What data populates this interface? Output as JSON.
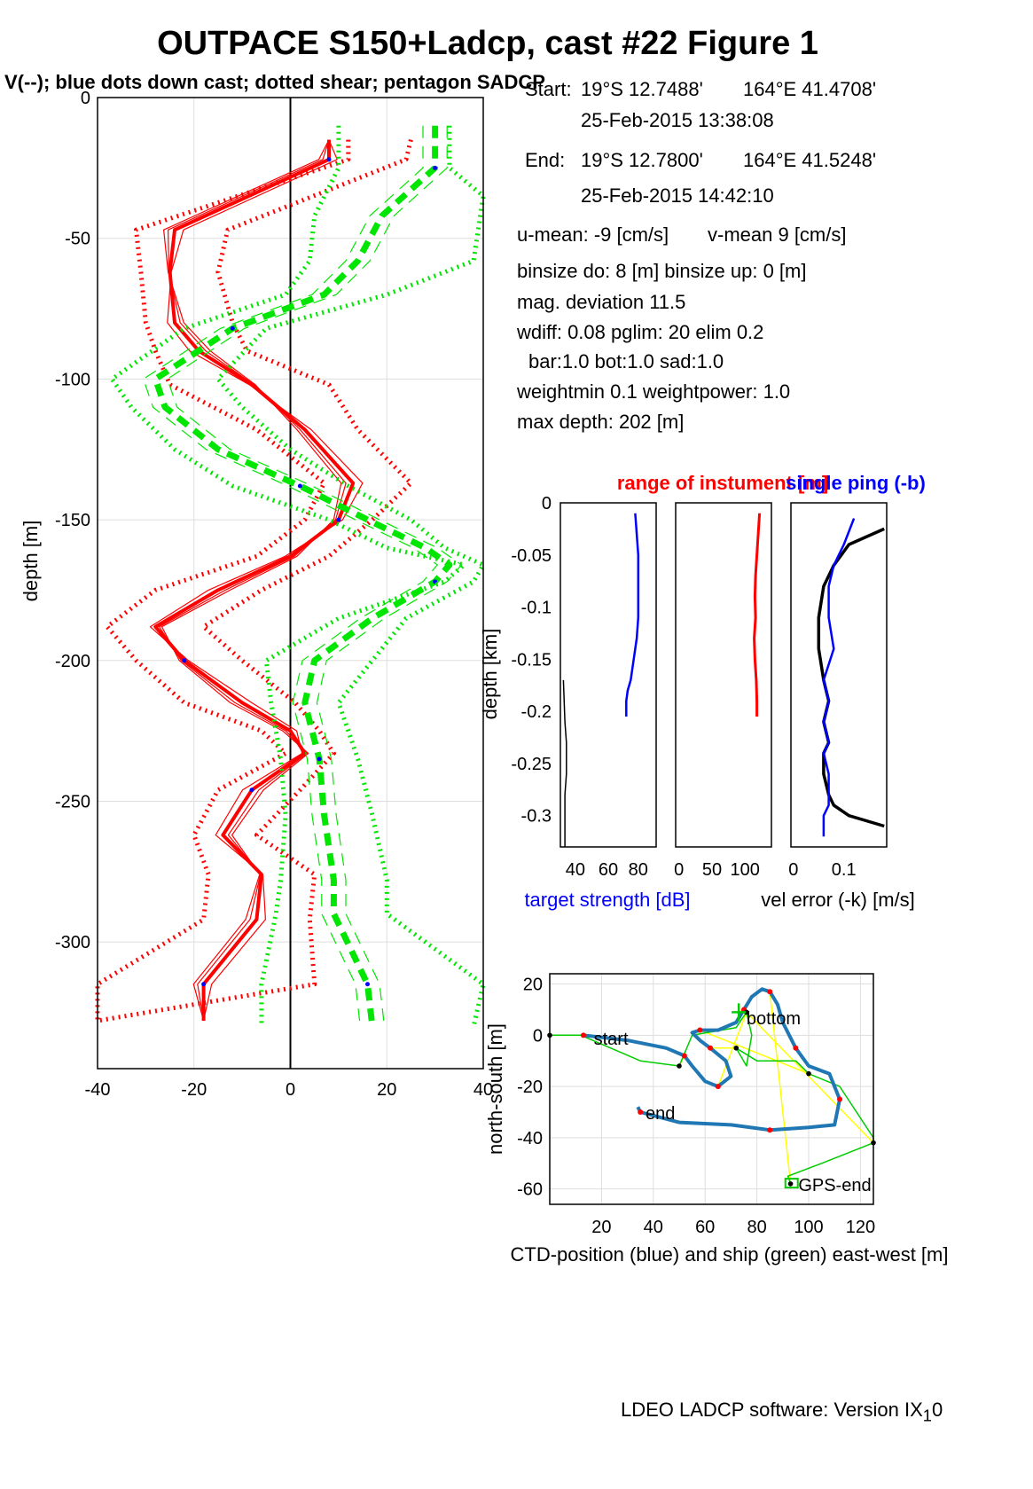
{
  "title": "OUTPACE S150+Ladcp, cast #22  Figure 1",
  "subtitle": "V(--); blue dots down cast; dotted shear; pentagon SADCP",
  "info": {
    "start_label": "Start:",
    "start_lat": "19°S 12.7488'",
    "start_lon": "164°E 41.4708'",
    "start_time": "25-Feb-2015 13:38:08",
    "end_label": "End:",
    "end_lat": "19°S 12.7800'",
    "end_lon": "164°E 41.5248'",
    "end_time": "25-Feb-2015 14:42:10",
    "umean": "u-mean:  -9 [cm/s]",
    "vmean": "v-mean   9 [cm/s]",
    "binsize": "binsize do: 8 [m]  binsize up:  0 [m]",
    "magdev": "mag. deviation 11.5",
    "wdiff": "wdiff: 0.08  pglim: 20  elim 0.2",
    "bar": "bar:1.0 bot:1.0 sad:1.0",
    "weight": "weightmin 0.1  weightpower: 1.0",
    "maxdepth": "max depth: 202 [m]"
  },
  "footer": "LDEO LADCP software: Version IX",
  "footer_sub": "1",
  "footer_tail": "0",
  "colors": {
    "u": "#ff0000",
    "v": "#00e600",
    "blue": "#0000ff",
    "track": "#1f77b4",
    "ship": "#00cc00",
    "link": "#ffff00"
  },
  "chart_data": [
    {
      "type": "line",
      "title": "",
      "xlabel": "",
      "ylabel": "depth [m]",
      "xlim": [
        -40,
        40
      ],
      "ylim": [
        -345,
        0
      ],
      "xticks": [
        "-40",
        "-20",
        "0",
        "20",
        "40"
      ],
      "yticks": [
        "0",
        "-50",
        "-100",
        "-150",
        "-200",
        "-250",
        "-300"
      ],
      "grid": true,
      "series": [
        {
          "color": "u",
          "style": "solid",
          "width": 4,
          "x": [
            8,
            8,
            -24,
            -25,
            -24,
            -19,
            -8,
            3,
            13,
            10,
            0,
            -15,
            -28,
            -22,
            -10,
            0,
            3,
            -8,
            -14,
            -6,
            -7,
            -18,
            -18
          ],
          "y": [
            -15,
            -22,
            -47,
            -62,
            -80,
            -90,
            -102,
            -118,
            -137,
            -150,
            -163,
            -175,
            -188,
            -200,
            -215,
            -225,
            -233,
            -246,
            -262,
            -276,
            -292,
            -315,
            -328
          ]
        },
        {
          "color": "u",
          "style": "dotted",
          "width": 5,
          "x": [
            12,
            12,
            -32,
            -31,
            -30,
            -28,
            -25,
            -7,
            7,
            3,
            -7,
            -28,
            -38,
            -32,
            -22,
            -6,
            -1,
            -15,
            -20,
            -17,
            -18,
            -40,
            -40
          ],
          "y": [
            -15,
            -22,
            -47,
            -62,
            -80,
            -90,
            -102,
            -118,
            -137,
            -150,
            -163,
            -175,
            -188,
            -200,
            -215,
            -225,
            -233,
            -246,
            -262,
            -276,
            -292,
            -315,
            -328
          ]
        },
        {
          "color": "u",
          "style": "dotted",
          "width": 5,
          "x": [
            25,
            24,
            -13,
            -15,
            -12,
            -9,
            8,
            14,
            25,
            17,
            8,
            -6,
            -18,
            -10,
            1,
            6,
            9,
            2,
            -7,
            5,
            4,
            5,
            -40
          ],
          "y": [
            -15,
            -22,
            -47,
            -62,
            -80,
            -90,
            -102,
            -118,
            -137,
            -150,
            -163,
            -175,
            -188,
            -200,
            -215,
            -225,
            -233,
            -246,
            -262,
            -276,
            -292,
            -315,
            -328
          ]
        },
        {
          "color": "v",
          "style": "dashed",
          "width": 7,
          "x": [
            30,
            30,
            19,
            14,
            7,
            -12,
            -28,
            -26,
            -15,
            2,
            16,
            28,
            33,
            30,
            17,
            5,
            3,
            6,
            7,
            9,
            9,
            16,
            17
          ],
          "y": [
            -10,
            -25,
            -42,
            -58,
            -70,
            -82,
            -100,
            -110,
            -125,
            -138,
            -150,
            -160,
            -166,
            -172,
            -185,
            -200,
            -215,
            -235,
            -255,
            -278,
            -290,
            -315,
            -330
          ]
        },
        {
          "color": "v",
          "style": "dotted",
          "width": 5,
          "x": [
            10,
            10,
            5,
            4,
            -1,
            -22,
            -37,
            -33,
            -24,
            -12,
            8,
            20,
            36,
            32,
            10,
            -5,
            -4,
            -2,
            -1,
            -2,
            -3,
            -6,
            -6
          ],
          "y": [
            -10,
            -25,
            -42,
            -58,
            -70,
            -82,
            -100,
            -110,
            -125,
            -138,
            -150,
            -160,
            -166,
            -172,
            -185,
            -200,
            -215,
            -235,
            -255,
            -278,
            -290,
            -315,
            -330
          ]
        },
        {
          "color": "v",
          "style": "dotted",
          "width": 5,
          "x": [
            33,
            33,
            40,
            38,
            20,
            -5,
            -15,
            -10,
            0,
            12,
            25,
            32,
            40,
            38,
            24,
            17,
            10,
            14,
            17,
            20,
            20,
            40,
            38
          ],
          "y": [
            -10,
            -25,
            -35,
            -58,
            -70,
            -82,
            -100,
            -110,
            -125,
            -138,
            -150,
            -160,
            -166,
            -172,
            -185,
            -200,
            -215,
            -235,
            -255,
            -278,
            -290,
            -315,
            -330
          ]
        }
      ]
    },
    {
      "type": "line",
      "title": "range of instument [m]",
      "xlabel": "target strength [dB]",
      "ylabel": "depth [km]",
      "xticks": [
        "40",
        "60",
        "80"
      ],
      "yticks": [
        "0",
        "-0.05",
        "-0.1",
        "-0.15",
        "-0.2",
        "-0.25",
        "-0.3"
      ],
      "ylim": [
        -0.33,
        0
      ],
      "series": [
        {
          "color": "blue",
          "x": [
            78,
            79,
            80,
            80,
            80,
            80,
            79,
            77,
            75,
            73,
            72,
            72
          ],
          "y": [
            -0.01,
            -0.03,
            -0.05,
            -0.07,
            -0.09,
            -0.11,
            -0.13,
            -0.15,
            -0.17,
            -0.18,
            -0.19,
            -0.205
          ]
        },
        {
          "color": "#000000",
          "x": [
            30,
            31,
            32,
            32,
            31,
            31,
            31
          ],
          "y": [
            -0.17,
            -0.21,
            -0.23,
            -0.26,
            -0.28,
            -0.3,
            -0.33
          ]
        }
      ]
    },
    {
      "type": "line",
      "title": "",
      "xticks": [
        "0",
        "50",
        "100"
      ],
      "ylim": [
        -0.33,
        0
      ],
      "series": [
        {
          "color": "u",
          "x": [
            122,
            120,
            118,
            116,
            115,
            116,
            114,
            115,
            117,
            118,
            118
          ],
          "y": [
            -0.01,
            -0.03,
            -0.05,
            -0.07,
            -0.09,
            -0.11,
            -0.13,
            -0.15,
            -0.17,
            -0.19,
            -0.205
          ]
        }
      ]
    },
    {
      "type": "line",
      "title": "single ping (-b)",
      "xlabel": "vel error (-k) [m/s]",
      "xticks": [
        "0",
        "0.1"
      ],
      "ylim": [
        -0.33,
        0
      ],
      "series": [
        {
          "color": "#000000",
          "x": [
            0.18,
            0.11,
            0.08,
            0.06,
            0.05,
            0.05,
            0.06,
            0.07,
            0.06,
            0.07,
            0.06,
            0.06,
            0.07,
            0.08,
            0.11,
            0.18
          ],
          "y": [
            -0.025,
            -0.04,
            -0.06,
            -0.08,
            -0.11,
            -0.14,
            -0.17,
            -0.19,
            -0.21,
            -0.23,
            -0.24,
            -0.26,
            -0.28,
            -0.29,
            -0.3,
            -0.31
          ]
        },
        {
          "color": "blue",
          "x": [
            0.12,
            0.1,
            0.08,
            0.07,
            0.07,
            0.08,
            0.06,
            0.07,
            0.06,
            0.07,
            0.06,
            0.07,
            0.07,
            0.07,
            0.06,
            0.06
          ],
          "y": [
            -0.015,
            -0.04,
            -0.06,
            -0.08,
            -0.11,
            -0.14,
            -0.17,
            -0.19,
            -0.21,
            -0.23,
            -0.24,
            -0.26,
            -0.28,
            -0.29,
            -0.3,
            -0.32
          ]
        }
      ]
    },
    {
      "type": "line",
      "title": "",
      "xlabel": "CTD-position (blue) and ship (green) east-west [m]",
      "ylabel": "north-south [m]",
      "xticks": [
        "20",
        "40",
        "60",
        "80",
        "100",
        "120"
      ],
      "yticks": [
        "20",
        "0",
        "-20",
        "-40",
        "-60"
      ],
      "xlim": [
        0,
        125
      ],
      "ylim": [
        -66,
        24
      ],
      "annotations": [
        "start",
        "bottom",
        "end",
        "GPS-end"
      ],
      "series": [
        {
          "name": "CTD-position",
          "color": "track",
          "x": [
            13,
            30,
            45,
            52,
            55,
            60,
            65,
            70,
            68,
            62,
            58,
            55,
            58,
            65,
            72,
            75,
            78,
            82,
            85,
            88,
            90,
            95,
            100,
            108,
            112,
            110,
            100,
            85,
            70,
            50,
            35,
            34
          ],
          "y": [
            0,
            -2,
            -5,
            -8,
            -12,
            -18,
            -20,
            -16,
            -10,
            -5,
            -2,
            1,
            2,
            2,
            5,
            10,
            15,
            18,
            17,
            12,
            5,
            -5,
            -12,
            -15,
            -25,
            -35,
            -36,
            -37,
            -35,
            -34,
            -30,
            -28
          ]
        },
        {
          "name": "ship",
          "color": "ship",
          "x": [
            0,
            12,
            35,
            50,
            55,
            72,
            76,
            78,
            76,
            72,
            80,
            95,
            100,
            112,
            125,
            125,
            105,
            92,
            93
          ],
          "y": [
            0,
            0,
            -10,
            -12,
            0,
            3,
            9,
            0,
            -12,
            -5,
            -10,
            -10,
            -15,
            -20,
            -40,
            -42,
            -50,
            -55,
            -58
          ]
        }
      ]
    }
  ]
}
